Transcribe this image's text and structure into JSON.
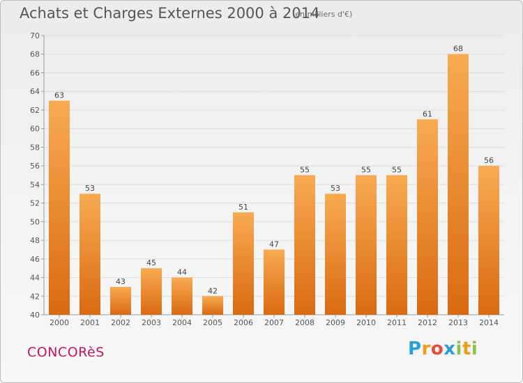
{
  "header": {
    "title": "Achats et Charges Externes 2000 à 2014",
    "subtitle": "(en milliers d'€)"
  },
  "footer": {
    "commune": "CONCORèS",
    "logo": [
      "P",
      "r",
      "o",
      "x",
      "i",
      "t",
      "i"
    ]
  },
  "colors": {
    "bar_light": "#f7a84f",
    "bar_dark": "#d96a12",
    "commune": "#c2185b"
  },
  "chart_data": {
    "type": "bar",
    "title": "Achats et Charges Externes 2000 à 2014",
    "subtitle": "(en milliers d'€)",
    "categories": [
      "2000",
      "2001",
      "2002",
      "2003",
      "2004",
      "2005",
      "2006",
      "2007",
      "2008",
      "2009",
      "2010",
      "2011",
      "2012",
      "2013",
      "2014"
    ],
    "values": [
      63,
      53,
      43,
      45,
      44,
      42,
      51,
      47,
      55,
      53,
      55,
      55,
      61,
      68,
      56
    ],
    "ylim": [
      40,
      70
    ],
    "yticks": [
      40,
      42,
      44,
      46,
      48,
      50,
      52,
      54,
      56,
      58,
      60,
      62,
      64,
      66,
      68,
      70
    ],
    "grid": true,
    "data_labels": true
  }
}
